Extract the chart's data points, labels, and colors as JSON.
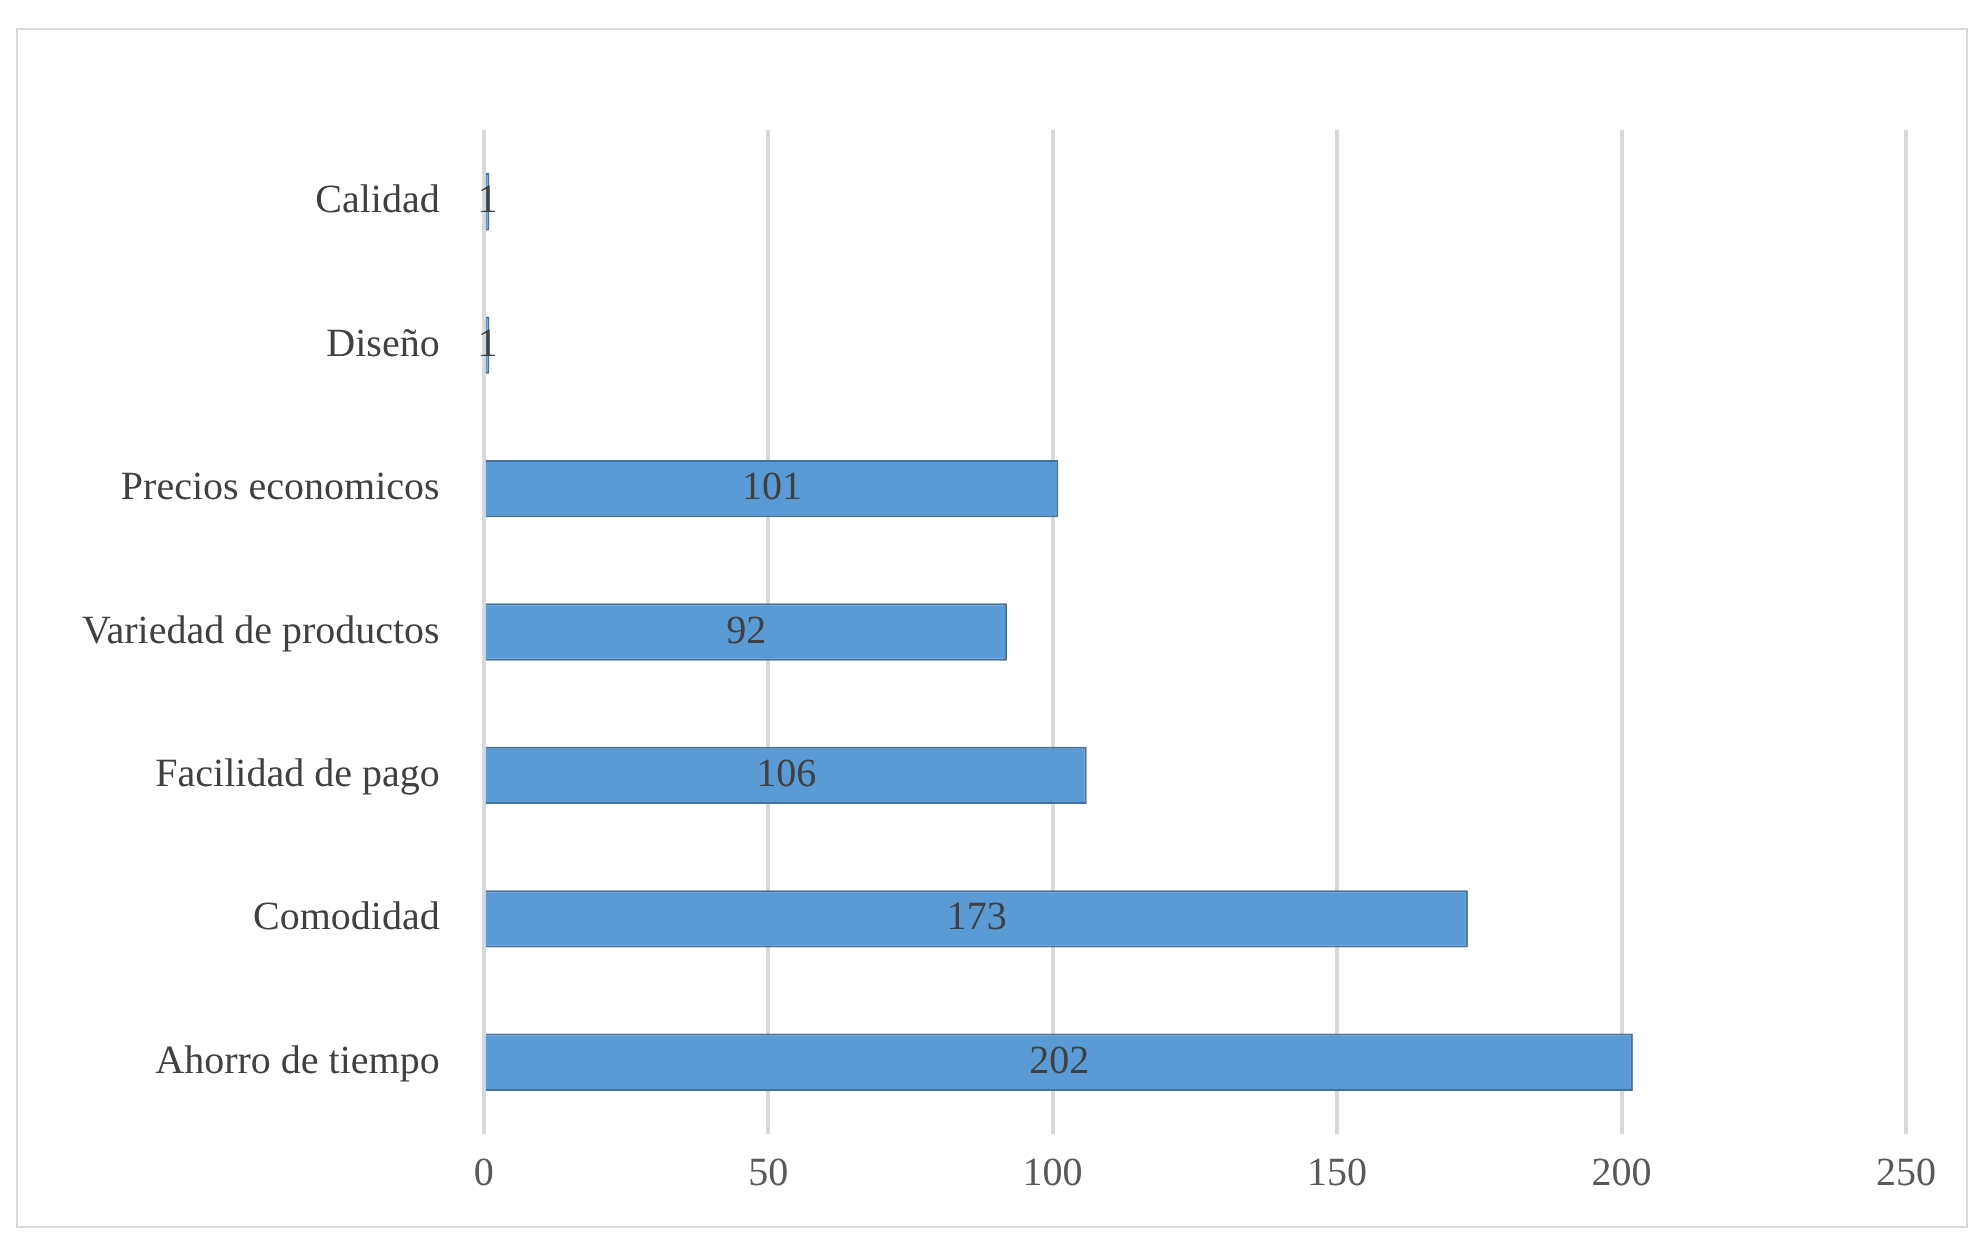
{
  "chart_data": {
    "type": "bar",
    "orientation": "horizontal",
    "categories": [
      "Calidad",
      "Diseño",
      "Precios economicos",
      "Variedad de productos",
      "Facilidad de pago",
      "Comodidad",
      "Ahorro de tiempo"
    ],
    "values": [
      1,
      1,
      101,
      92,
      106,
      173,
      202
    ],
    "color": "#5b9bd5",
    "xlim": [
      0,
      250
    ],
    "xticks": [
      0,
      50,
      100,
      150,
      200,
      250
    ],
    "grid": "x",
    "data_labels": true
  }
}
